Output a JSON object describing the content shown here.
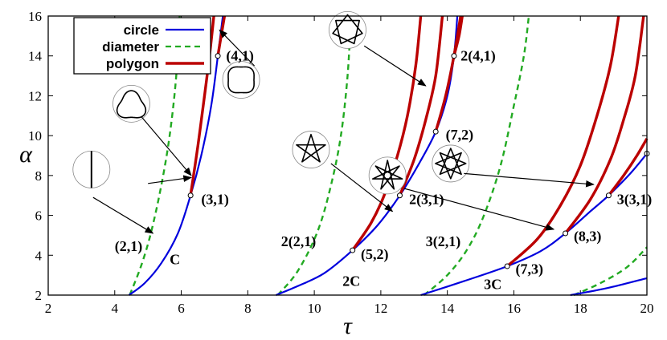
{
  "chart_data": {
    "type": "line",
    "xlabel": "τ",
    "ylabel": "α",
    "xlim": [
      2,
      20
    ],
    "ylim": [
      2,
      16
    ],
    "xticks": [
      "2",
      "4",
      "6",
      "8",
      "10",
      "12",
      "14",
      "16",
      "18",
      "20"
    ],
    "yticks": [
      "2",
      "4",
      "6",
      "8",
      "10",
      "12",
      "14",
      "16"
    ],
    "legend_position": "top-left",
    "legend": [
      {
        "name": "circle",
        "color": "#0000dd",
        "dash": "solid"
      },
      {
        "name": "diameter",
        "color": "#22aa22",
        "dash": "dashed"
      },
      {
        "name": "polygon",
        "color": "#bb0000",
        "dash": "solid"
      }
    ],
    "circle_branches": [
      [
        [
          4.43,
          2.0
        ],
        [
          4.9,
          2.6
        ],
        [
          5.4,
          3.6
        ],
        [
          5.9,
          5.1
        ],
        [
          6.28,
          7.0
        ],
        [
          6.6,
          9.0
        ],
        [
          6.9,
          11.5
        ],
        [
          7.1,
          14.0
        ],
        [
          7.25,
          16.0
        ]
      ],
      [
        [
          8.85,
          2.0
        ],
        [
          9.5,
          2.45
        ],
        [
          10.3,
          3.1
        ],
        [
          11.15,
          4.25
        ],
        [
          11.9,
          5.5
        ],
        [
          12.57,
          7.0
        ],
        [
          13.15,
          8.6
        ],
        [
          13.65,
          10.2
        ],
        [
          14.0,
          12.0
        ],
        [
          14.2,
          14.0
        ],
        [
          14.3,
          16.0
        ]
      ],
      [
        [
          13.2,
          2.0
        ],
        [
          14.5,
          2.7
        ],
        [
          15.8,
          3.45
        ],
        [
          16.8,
          4.2
        ],
        [
          17.55,
          5.1
        ],
        [
          18.3,
          6.2
        ],
        [
          18.85,
          7.0
        ],
        [
          19.5,
          8.1
        ],
        [
          20.0,
          9.1
        ]
      ],
      [
        [
          17.7,
          2.0
        ],
        [
          18.8,
          2.35
        ],
        [
          20.0,
          2.85
        ]
      ]
    ],
    "diameter_branches": [
      [
        [
          4.45,
          2.0
        ],
        [
          4.8,
          3.5
        ],
        [
          5.1,
          5.2
        ],
        [
          5.4,
          7.5
        ],
        [
          5.65,
          10.0
        ],
        [
          5.85,
          13.0
        ],
        [
          5.95,
          16.0
        ]
      ],
      [
        [
          8.9,
          2.0
        ],
        [
          9.5,
          3.2
        ],
        [
          10.1,
          5.2
        ],
        [
          10.5,
          7.5
        ],
        [
          10.8,
          10.0
        ],
        [
          11.0,
          13.0
        ],
        [
          11.1,
          16.0
        ]
      ],
      [
        [
          13.3,
          2.0
        ],
        [
          14.0,
          3.0
        ],
        [
          14.6,
          4.3
        ],
        [
          15.1,
          6.0
        ],
        [
          15.6,
          8.5
        ],
        [
          16.0,
          11.5
        ],
        [
          16.3,
          14.0
        ],
        [
          16.45,
          16.0
        ]
      ],
      [
        [
          17.8,
          2.0
        ],
        [
          18.6,
          2.6
        ],
        [
          19.4,
          3.4
        ],
        [
          20.0,
          4.4
        ]
      ]
    ],
    "polygon_branches": [
      [
        [
          6.28,
          7.0
        ],
        [
          6.5,
          9.5
        ],
        [
          6.7,
          12.0
        ],
        [
          6.85,
          14.0
        ],
        [
          6.98,
          16.0
        ]
      ],
      [
        [
          7.1,
          14.0
        ],
        [
          7.2,
          15.0
        ],
        [
          7.3,
          16.0
        ]
      ],
      [
        [
          11.15,
          4.25
        ],
        [
          11.7,
          5.6
        ],
        [
          12.1,
          7.0
        ],
        [
          12.5,
          9.0
        ],
        [
          12.8,
          11.0
        ],
        [
          13.05,
          13.5
        ],
        [
          13.2,
          16.0
        ]
      ],
      [
        [
          12.57,
          7.0
        ],
        [
          13.0,
          8.8
        ],
        [
          13.35,
          10.8
        ],
        [
          13.65,
          13.0
        ],
        [
          13.85,
          16.0
        ]
      ],
      [
        [
          13.65,
          10.2
        ],
        [
          13.95,
          12.0
        ],
        [
          14.2,
          14.0
        ],
        [
          14.4,
          16.0
        ]
      ],
      [
        [
          14.2,
          14.0
        ],
        [
          14.35,
          15.0
        ],
        [
          14.45,
          16.0
        ]
      ],
      [
        [
          15.8,
          3.45
        ],
        [
          16.7,
          4.8
        ],
        [
          17.4,
          6.5
        ],
        [
          18.0,
          8.5
        ],
        [
          18.5,
          11.0
        ],
        [
          18.9,
          13.5
        ],
        [
          19.15,
          16.0
        ]
      ],
      [
        [
          17.55,
          5.1
        ],
        [
          18.3,
          6.8
        ],
        [
          18.9,
          8.8
        ],
        [
          19.3,
          10.8
        ],
        [
          19.65,
          13.0
        ],
        [
          19.9,
          16.0
        ]
      ],
      [
        [
          18.85,
          7.0
        ],
        [
          19.3,
          8.0
        ],
        [
          19.7,
          9.0
        ],
        [
          20.0,
          9.85
        ]
      ]
    ],
    "points": [
      {
        "x": 6.28,
        "y": 7.0,
        "label": "(3,1)",
        "lx": 6.6,
        "ly": 6.8
      },
      {
        "x": 7.1,
        "y": 14.0,
        "label": "(4,1)",
        "lx": 7.35,
        "ly": 14.0
      },
      {
        "x": 11.15,
        "y": 4.25,
        "label": "(5,2)",
        "lx": 11.4,
        "ly": 4.05
      },
      {
        "x": 12.57,
        "y": 7.0,
        "label": "2(3,1)",
        "lx": 12.85,
        "ly": 6.8
      },
      {
        "x": 13.65,
        "y": 10.2,
        "label": "(7,2)",
        "lx": 13.95,
        "ly": 10.05
      },
      {
        "x": 14.2,
        "y": 14.0,
        "label": "2(4,1)",
        "lx": 14.4,
        "ly": 14.0
      },
      {
        "x": 15.8,
        "y": 3.45,
        "label": "(7,3)",
        "lx": 16.05,
        "ly": 3.3
      },
      {
        "x": 17.55,
        "y": 5.1,
        "label": "(8,3)",
        "lx": 17.8,
        "ly": 4.95
      },
      {
        "x": 18.85,
        "y": 7.0,
        "label": "3(3,1)",
        "lx": 19.1,
        "ly": 6.8
      },
      {
        "x": 20.0,
        "y": 9.1,
        "label": "",
        "lx": 20,
        "ly": 9.1
      }
    ],
    "annotations": [
      {
        "text": "(2,1)",
        "x": 4.0,
        "y": 4.45
      },
      {
        "text": "C",
        "x": 5.65,
        "y": 3.8
      },
      {
        "text": "2(2,1)",
        "x": 9.0,
        "y": 4.7
      },
      {
        "text": "2C",
        "x": 10.85,
        "y": 2.7
      },
      {
        "text": "3(2,1)",
        "x": 13.35,
        "y": 4.7
      },
      {
        "text": "3C",
        "x": 15.1,
        "y": 2.55
      }
    ],
    "insets": [
      {
        "shape": "diameter",
        "cx": 3.3,
        "cy": 8.3,
        "r": 23
      },
      {
        "shape": "triangle",
        "cx": 4.5,
        "cy": 11.6,
        "r": 23
      },
      {
        "shape": "square",
        "cx": 7.8,
        "cy": 12.8,
        "r": 23
      },
      {
        "shape": "pentagram",
        "cx": 9.9,
        "cy": 9.3,
        "r": 23
      },
      {
        "shape": "heptagram",
        "cx": 11.0,
        "cy": 15.3,
        "r": 23
      },
      {
        "shape": "star7",
        "cx": 12.2,
        "cy": 8.0,
        "r": 23
      },
      {
        "shape": "star8",
        "cx": 14.1,
        "cy": 8.6,
        "r": 23
      }
    ],
    "arrows": [
      {
        "from": [
          5.0,
          7.6
        ],
        "to": [
          6.3,
          7.9
        ]
      },
      {
        "from": [
          4.8,
          10.95
        ],
        "to": [
          6.3,
          8.0
        ]
      },
      {
        "from": [
          3.35,
          6.9
        ],
        "to": [
          5.15,
          5.1
        ]
      },
      {
        "from": [
          8.2,
          13.5
        ],
        "to": [
          7.15,
          15.3
        ]
      },
      {
        "from": [
          10.5,
          8.6
        ],
        "to": [
          12.35,
          6.2
        ]
      },
      {
        "from": [
          11.5,
          14.5
        ],
        "to": [
          13.35,
          12.5
        ]
      },
      {
        "from": [
          12.7,
          7.35
        ],
        "to": [
          17.2,
          5.3
        ]
      },
      {
        "from": [
          14.5,
          8.1
        ],
        "to": [
          18.4,
          7.55
        ]
      }
    ]
  }
}
